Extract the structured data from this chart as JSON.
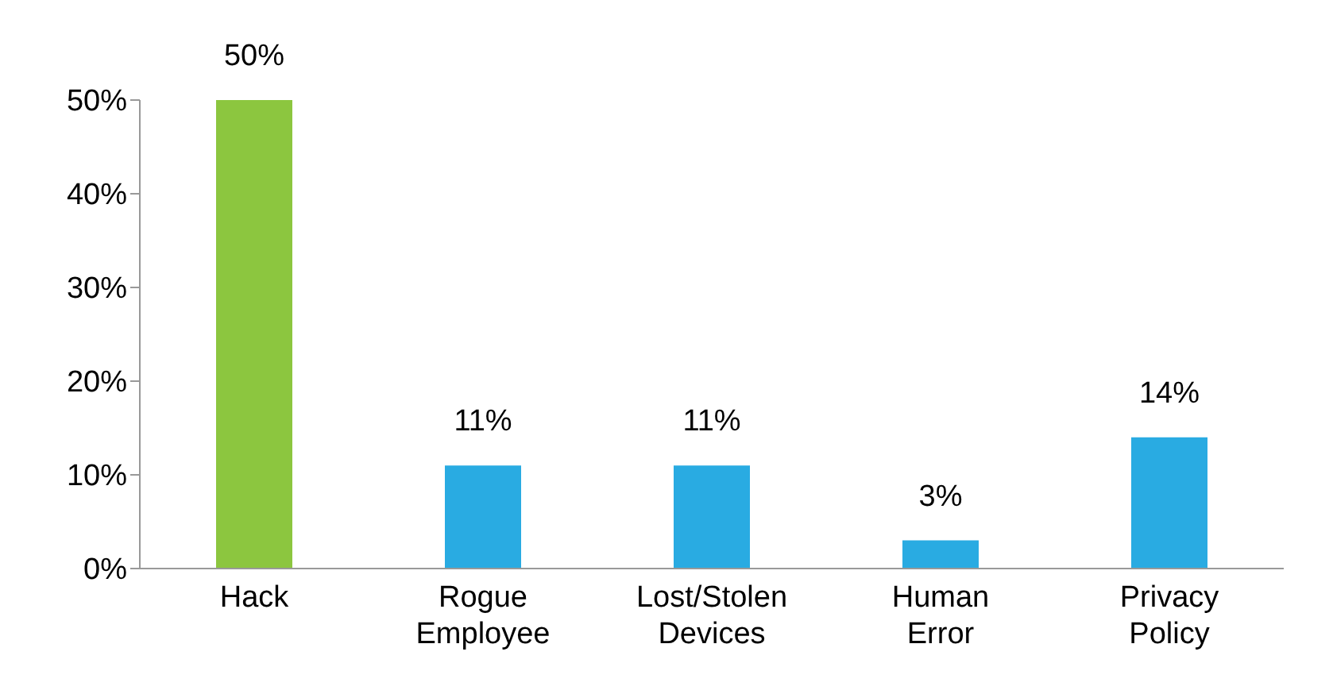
{
  "chart_data": {
    "type": "bar",
    "categories": [
      "Hack",
      "Rogue Employee",
      "Lost/Stolen Devices",
      "Human Error",
      "Privacy Policy"
    ],
    "values": [
      50,
      11,
      11,
      3,
      14
    ],
    "colors": [
      "#8cc63f",
      "#29abe2",
      "#29abe2",
      "#29abe2",
      "#29abe2"
    ],
    "value_labels": [
      "50%",
      "11%",
      "11%",
      "3%",
      "14%"
    ],
    "ylim": [
      0,
      50
    ],
    "yticks": [
      {
        "value": 0,
        "label": "0%"
      },
      {
        "value": 10,
        "label": "10%"
      },
      {
        "value": 20,
        "label": "20%"
      },
      {
        "value": 30,
        "label": "30%"
      },
      {
        "value": 40,
        "label": "40%"
      },
      {
        "value": 50,
        "label": "50%"
      }
    ],
    "grid": false,
    "legend": false
  }
}
